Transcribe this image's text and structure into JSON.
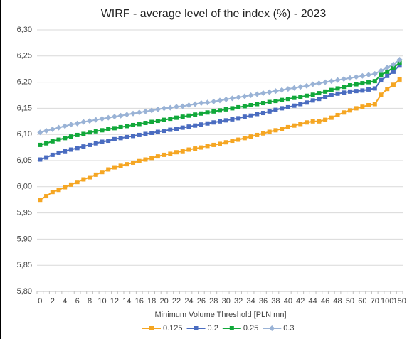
{
  "chart_data": {
    "type": "line",
    "title": "WIRF - average level of the index (%) - 2023",
    "x_label": "Minimum Volume Threshold [PLN mn]",
    "categories": [
      0,
      null,
      2,
      null,
      4,
      null,
      6,
      null,
      8,
      null,
      10,
      null,
      12,
      null,
      14,
      null,
      16,
      null,
      18,
      null,
      20,
      null,
      22,
      null,
      24,
      null,
      26,
      null,
      28,
      null,
      30,
      null,
      32,
      null,
      34,
      null,
      36,
      null,
      38,
      null,
      40,
      null,
      42,
      null,
      44,
      null,
      46,
      null,
      48,
      null,
      50,
      null,
      60,
      null,
      70,
      null,
      100,
      null,
      150
    ],
    "ylim": [
      5.8,
      6.3
    ],
    "yticks": [
      {
        "value": 5.8,
        "label": "5,80"
      },
      {
        "value": 5.85,
        "label": "5,85"
      },
      {
        "value": 5.9,
        "label": "5,90"
      },
      {
        "value": 5.95,
        "label": "5,95"
      },
      {
        "value": 6.0,
        "label": "6,00"
      },
      {
        "value": 6.05,
        "label": "6,05"
      },
      {
        "value": 6.1,
        "label": "6,10"
      },
      {
        "value": 6.15,
        "label": "6,15"
      },
      {
        "value": 6.2,
        "label": "6,20"
      },
      {
        "value": 6.25,
        "label": "6,25"
      },
      {
        "value": 6.3,
        "label": "6,30"
      }
    ],
    "grid": true,
    "legend": "bottom",
    "series": [
      {
        "name": "0.125",
        "color": "#f5a623",
        "marker": "square",
        "values": [
          5.975,
          5.982,
          5.99,
          5.994,
          5.999,
          6.004,
          6.009,
          6.014,
          6.018,
          6.023,
          6.028,
          6.033,
          6.037,
          6.04,
          6.043,
          6.046,
          6.049,
          6.052,
          6.055,
          6.058,
          6.061,
          6.063,
          6.066,
          6.068,
          6.071,
          6.073,
          6.075,
          6.078,
          6.08,
          6.082,
          6.085,
          6.088,
          6.09,
          6.093,
          6.096,
          6.099,
          6.102,
          6.105,
          6.108,
          6.111,
          6.114,
          6.117,
          6.12,
          6.123,
          6.125,
          6.125,
          6.128,
          6.132,
          6.137,
          6.142,
          6.146,
          6.15,
          6.153,
          6.156,
          6.158,
          6.176,
          6.187,
          6.195,
          6.205
        ]
      },
      {
        "name": "0.2",
        "color": "#4a6cc0",
        "marker": "square",
        "values": [
          6.052,
          6.056,
          6.061,
          6.065,
          6.068,
          6.071,
          6.074,
          6.077,
          6.08,
          6.083,
          6.086,
          6.088,
          6.091,
          6.093,
          6.095,
          6.097,
          6.099,
          6.101,
          6.103,
          6.105,
          6.107,
          6.109,
          6.111,
          6.113,
          6.115,
          6.117,
          6.119,
          6.121,
          6.123,
          6.125,
          6.127,
          6.129,
          6.131,
          6.134,
          6.136,
          6.139,
          6.141,
          6.144,
          6.147,
          6.15,
          6.152,
          6.155,
          6.158,
          6.161,
          6.165,
          6.168,
          6.172,
          6.175,
          6.178,
          6.18,
          6.182,
          6.183,
          6.184,
          6.186,
          6.188,
          6.204,
          6.212,
          6.22,
          6.233
        ]
      },
      {
        "name": "0.25",
        "color": "#11a83a",
        "marker": "square",
        "values": [
          6.08,
          6.083,
          6.087,
          6.09,
          6.093,
          6.096,
          6.099,
          6.101,
          6.104,
          6.106,
          6.108,
          6.11,
          6.112,
          6.114,
          6.116,
          6.118,
          6.12,
          6.122,
          6.124,
          6.126,
          6.128,
          6.13,
          6.132,
          6.134,
          6.136,
          6.138,
          6.14,
          6.142,
          6.144,
          6.146,
          6.148,
          6.15,
          6.152,
          6.154,
          6.156,
          6.158,
          6.16,
          6.162,
          6.164,
          6.166,
          6.168,
          6.17,
          6.172,
          6.174,
          6.176,
          6.179,
          6.182,
          6.185,
          6.188,
          6.191,
          6.194,
          6.196,
          6.198,
          6.2,
          6.202,
          6.214,
          6.22,
          6.228,
          6.237
        ]
      },
      {
        "name": "0.3",
        "color": "#9ab3d6",
        "marker": "diamond",
        "values": [
          6.104,
          6.107,
          6.11,
          6.113,
          6.116,
          6.119,
          6.121,
          6.124,
          6.126,
          6.128,
          6.13,
          6.132,
          6.134,
          6.136,
          6.138,
          6.14,
          6.142,
          6.144,
          6.146,
          6.148,
          6.15,
          6.151,
          6.153,
          6.154,
          6.156,
          6.158,
          6.16,
          6.161,
          6.163,
          6.165,
          6.167,
          6.169,
          6.171,
          6.173,
          6.175,
          6.177,
          6.179,
          6.181,
          6.183,
          6.185,
          6.187,
          6.189,
          6.191,
          6.193,
          6.196,
          6.198,
          6.2,
          6.202,
          6.204,
          6.206,
          6.208,
          6.21,
          6.212,
          6.214,
          6.216,
          6.222,
          6.228,
          6.234,
          6.243
        ]
      }
    ]
  }
}
